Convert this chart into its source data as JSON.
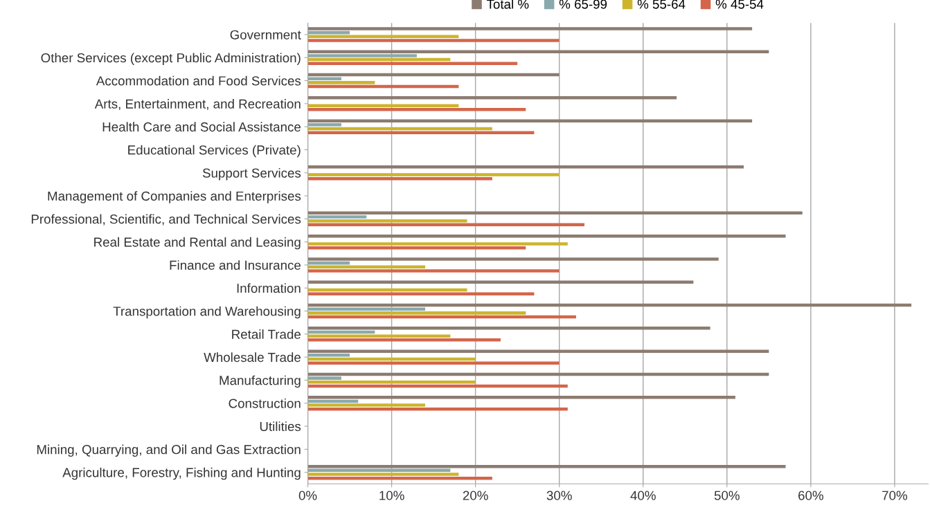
{
  "chart_data": {
    "type": "bar",
    "orientation": "horizontal",
    "categories": [
      "Government",
      "Other Services (except Public Administration)",
      "Accommodation and Food Services",
      "Arts, Entertainment, and Recreation",
      "Health Care and Social Assistance",
      "Educational Services (Private)",
      "Support Services",
      "Management of Companies and Enterprises",
      "Professional, Scientific, and Technical Services",
      "Real Estate and Rental and Leasing",
      "Finance and Insurance",
      "Information",
      "Transportation and Warehousing",
      "Retail Trade",
      "Wholesale Trade",
      "Manufacturing",
      "Construction",
      "Utilities",
      "Mining, Quarrying, and Oil and Gas Extraction",
      "Agriculture, Forestry, Fishing and Hunting"
    ],
    "series": [
      {
        "name": "Total %",
        "color": "#8c7b70",
        "values": [
          53,
          55,
          30,
          44,
          53,
          null,
          52,
          null,
          59,
          57,
          49,
          46,
          72,
          48,
          55,
          55,
          51,
          null,
          null,
          57
        ]
      },
      {
        "name": "% 65-99",
        "color": "#8aa9ad",
        "values": [
          5,
          13,
          4,
          null,
          4,
          null,
          null,
          null,
          7,
          null,
          5,
          null,
          14,
          8,
          5,
          4,
          6,
          null,
          null,
          17
        ]
      },
      {
        "name": "% 55-64",
        "color": "#cdb42c",
        "values": [
          18,
          17,
          8,
          18,
          22,
          null,
          30,
          null,
          19,
          31,
          14,
          19,
          26,
          17,
          20,
          20,
          14,
          null,
          null,
          18
        ]
      },
      {
        "name": "% 45-54",
        "color": "#d4654a",
        "values": [
          30,
          25,
          18,
          26,
          27,
          null,
          22,
          null,
          33,
          26,
          30,
          27,
          32,
          23,
          30,
          31,
          31,
          null,
          null,
          22
        ]
      }
    ],
    "xlim": [
      0,
      74
    ],
    "xticks": [
      {
        "value": 0,
        "label": "0%"
      },
      {
        "value": 10,
        "label": "10%"
      },
      {
        "value": 20,
        "label": "20%"
      },
      {
        "value": 30,
        "label": "30%"
      },
      {
        "value": 40,
        "label": "40%"
      },
      {
        "value": 50,
        "label": "50%"
      },
      {
        "value": 60,
        "label": "60%"
      },
      {
        "value": 70,
        "label": "70%"
      }
    ],
    "grid": "x",
    "legend": "top"
  }
}
